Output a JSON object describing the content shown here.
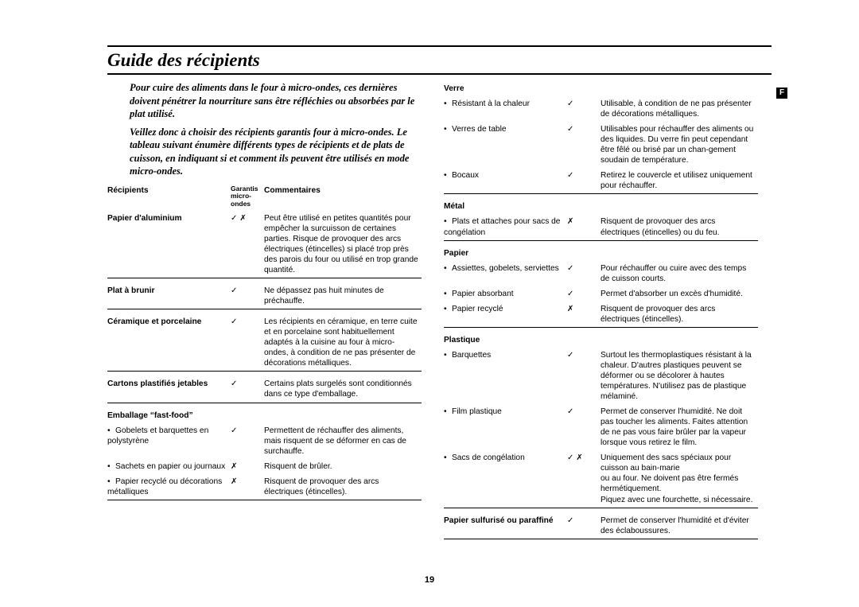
{
  "title": "Guide des récipients",
  "side_label": "F",
  "page_number": "19",
  "intro": {
    "p1": "Pour cuire des aliments dans le four à micro-ondes, ces dernières doivent pénétrer la nourriture sans être réfléchies ou absorbées par le plat utilisé.",
    "p2": "Veillez donc à choisir des récipients garantis four à micro-ondes. Le tableau suivant énumère différents types de récipients et de plats de cuisson, en indiquant si et comment ils peuvent être utilisés en mode micro-ondes."
  },
  "headers": {
    "item": "Récipients",
    "safe": "Garantis micro-ondes",
    "comments": "Commentaires"
  },
  "symbols": {
    "yes": "✓",
    "no": "✗",
    "yesno": "✓ ✗"
  },
  "left_table": [
    {
      "type": "row",
      "label": "Papier d'aluminium",
      "bold": true,
      "safe": "yesno",
      "comment": "Peut être utilisé en petites quantités pour empêcher la surcuisson de certaines parties. Risque de provoquer des arcs électriques (étincelles) si placé trop près des parois du four ou utilisé en trop grande quantité."
    },
    {
      "type": "sep"
    },
    {
      "type": "row",
      "label": "Plat à brunir",
      "bold": true,
      "safe": "yes",
      "comment": "Ne dépassez pas huit minutes de préchauffe."
    },
    {
      "type": "sep"
    },
    {
      "type": "row",
      "label": "Céramique et porcelaine",
      "bold": true,
      "safe": "yes",
      "comment": "Les récipients en céramique, en terre cuite et en porcelaine sont habituellement adaptés à la cuisine au four à micro-ondes, à condition de ne pas présenter de décorations métalliques."
    },
    {
      "type": "sep"
    },
    {
      "type": "row",
      "label": "Cartons plastifiés jetables",
      "bold": true,
      "safe": "yes",
      "comment": "Certains plats surgelés sont conditionnés dans ce type d'emballage."
    },
    {
      "type": "sep"
    },
    {
      "type": "header",
      "label": "Emballage “fast-food”"
    },
    {
      "type": "sub",
      "label": "Gobelets et barquettes en polystyrène",
      "safe": "yes",
      "comment": "Permettent de réchauffer des aliments, mais risquent de se déformer en cas de surchauffe."
    },
    {
      "type": "sub",
      "label": "Sachets en papier ou journaux",
      "safe": "no",
      "comment": "Risquent de brûler."
    },
    {
      "type": "sub",
      "label": "Papier recyclé ou décorations métalliques",
      "safe": "no",
      "comment": "Risquent de provoquer des arcs électriques (étincelles)."
    },
    {
      "type": "sep"
    }
  ],
  "right_table": [
    {
      "type": "header",
      "label": "Verre"
    },
    {
      "type": "sub",
      "label": "Résistant à la chaleur",
      "safe": "yes",
      "comment": "Utilisable, à condition de ne pas présenter de décorations métalliques."
    },
    {
      "type": "sub",
      "label": "Verres de table",
      "safe": "yes",
      "comment": "Utilisables pour réchauffer des aliments ou des liquides. Du verre fin peut cependant être fêlé ou brisé par un chan-gement soudain de température."
    },
    {
      "type": "sub",
      "label": "Bocaux",
      "safe": "yes",
      "comment": "Retirez le couvercle et utilisez uniquement pour réchauffer."
    },
    {
      "type": "sep"
    },
    {
      "type": "header",
      "label": "Métal"
    },
    {
      "type": "sub",
      "label": "Plats et attaches pour sacs de congélation",
      "safe": "no",
      "comment": "Risquent de provoquer des arcs électriques (étincelles) ou du feu."
    },
    {
      "type": "sep"
    },
    {
      "type": "header",
      "label": "Papier"
    },
    {
      "type": "sub",
      "label": "Assiettes, gobelets, serviettes",
      "safe": "yes",
      "comment": "Pour réchauffer ou cuire avec des temps de cuisson courts."
    },
    {
      "type": "sub",
      "label": "Papier absorbant",
      "safe": "yes",
      "comment": "Permet d'absorber un excès d'humidité."
    },
    {
      "type": "sub",
      "label": "Papier recyclé",
      "safe": "no",
      "comment": "Risquent de provoquer des arcs électriques (étincelles)."
    },
    {
      "type": "sep"
    },
    {
      "type": "header",
      "label": "Plastique"
    },
    {
      "type": "sub",
      "label": "Barquettes",
      "safe": "yes",
      "comment": "Surtout les thermoplastiques résistant à la chaleur. D'autres plastiques peuvent se déformer ou se décolorer à hautes températures. N'utilisez pas de plastique mélaminé."
    },
    {
      "type": "sub",
      "label": "Film plastique",
      "safe": "yes",
      "comment": "Permet de conserver l'humidité. Ne doit pas toucher les aliments. Faites attention de ne pas vous faire brûler par la vapeur lorsque vous retirez le film."
    },
    {
      "type": "sub",
      "label": "Sacs de congélation",
      "safe": "yesno",
      "comment": "Uniquement des sacs spéciaux pour cuisson au bain-marie\nou au four. Ne doivent pas être fermés hermétiquement.\nPiquez avec une fourchette, si nécessaire."
    },
    {
      "type": "sep"
    },
    {
      "type": "row",
      "label": "Papier sulfurisé ou paraffiné",
      "bold": true,
      "safe": "yes",
      "comment": "Permet de conserver l'humidité et d'éviter des éclaboussures."
    },
    {
      "type": "sep"
    }
  ]
}
